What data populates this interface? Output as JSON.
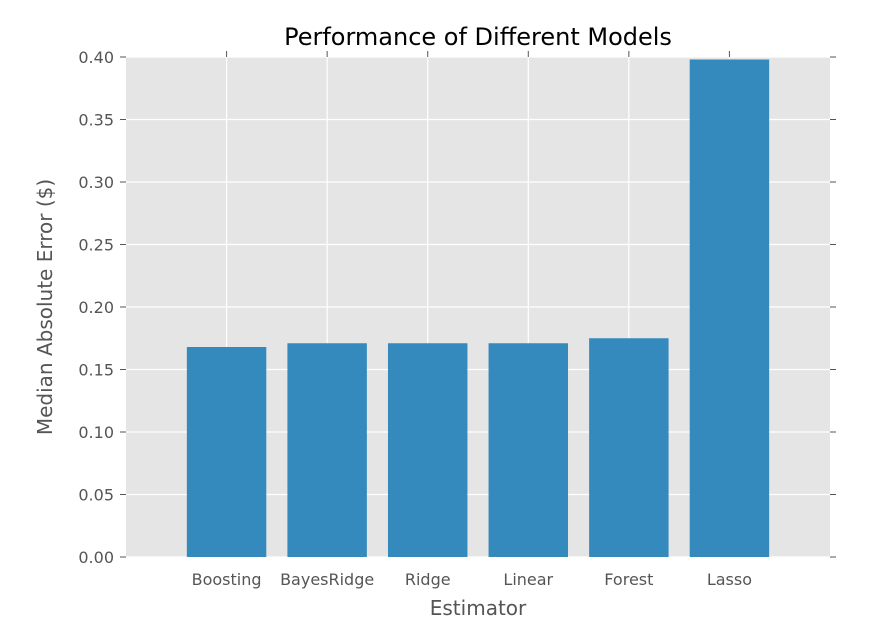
{
  "chart_data": {
    "type": "bar",
    "title": "Performance of Different Models",
    "xlabel": "Estimator",
    "ylabel": "Median Absolute Error ($)",
    "categories": [
      "Boosting",
      "BayesRidge",
      "Ridge",
      "Linear",
      "Forest",
      "Lasso"
    ],
    "values": [
      0.168,
      0.171,
      0.171,
      0.171,
      0.175,
      0.398
    ],
    "ylim": [
      0,
      0.4
    ],
    "yticks": [
      "0.00",
      "0.05",
      "0.10",
      "0.15",
      "0.20",
      "0.25",
      "0.30",
      "0.35",
      "0.40"
    ],
    "grid": true,
    "legend": "none",
    "colors": {
      "bar": "#348abd",
      "plot_background": "#e5e5e5",
      "grid": "#ffffff",
      "text": "#555555",
      "title": "#000000"
    }
  }
}
